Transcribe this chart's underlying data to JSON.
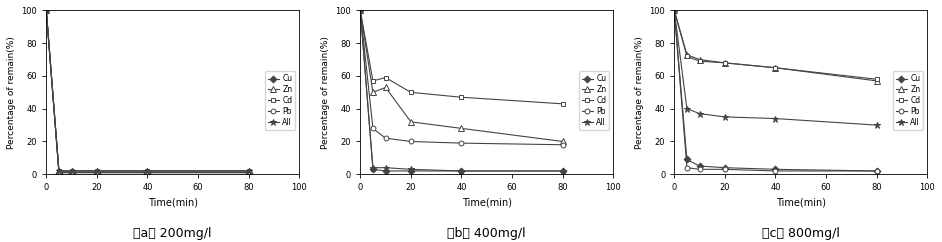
{
  "time": [
    0,
    5,
    10,
    20,
    40,
    80
  ],
  "subplots": [
    {
      "title": "（a） 200mg/l",
      "series_order": [
        "Cu",
        "Zn",
        "Cd",
        "Pb",
        "All"
      ],
      "series": {
        "Cu": [
          100,
          1,
          1,
          1,
          1,
          1
        ],
        "Zn": [
          100,
          2,
          2,
          2,
          2,
          2
        ],
        "Cd": [
          100,
          2,
          2,
          2,
          2,
          2
        ],
        "Pb": [
          100,
          1,
          1,
          1,
          1,
          1
        ],
        "All": [
          100,
          2,
          2,
          2,
          2,
          2
        ]
      }
    },
    {
      "title": "（b） 400mg/l",
      "series_order": [
        "Cu",
        "Zn",
        "Cd",
        "Pb",
        "All"
      ],
      "series": {
        "Cu": [
          100,
          3,
          2,
          2,
          2,
          2
        ],
        "Zn": [
          100,
          50,
          53,
          32,
          28,
          20
        ],
        "Cd": [
          100,
          57,
          59,
          50,
          47,
          43
        ],
        "Pb": [
          100,
          28,
          22,
          20,
          19,
          18
        ],
        "All": [
          100,
          4,
          4,
          3,
          2,
          2
        ]
      }
    },
    {
      "title": "（c） 800mg/l",
      "series_order": [
        "Cu",
        "Zn",
        "Cd",
        "Pb",
        "All"
      ],
      "series": {
        "Cu": [
          100,
          9,
          5,
          4,
          3,
          2
        ],
        "Zn": [
          100,
          73,
          70,
          68,
          65,
          57
        ],
        "Cd": [
          100,
          72,
          69,
          68,
          65,
          58
        ],
        "Pb": [
          100,
          4,
          3,
          3,
          2,
          2
        ],
        "All": [
          100,
          40,
          37,
          35,
          34,
          30
        ]
      }
    }
  ],
  "series_styles": {
    "Cu": {
      "marker": "D",
      "markersize": 3.5,
      "color": "#444444",
      "mfc": "#444444"
    },
    "Zn": {
      "marker": "^",
      "markersize": 4,
      "color": "#444444",
      "mfc": "white"
    },
    "Cd": {
      "marker": "s",
      "markersize": 3.5,
      "color": "#444444",
      "mfc": "white"
    },
    "Pb": {
      "marker": "o",
      "markersize": 3.5,
      "color": "#444444",
      "mfc": "white"
    },
    "All": {
      "marker": "*",
      "markersize": 5,
      "color": "#444444",
      "mfc": "#444444"
    }
  },
  "ylabel": "Percentage of remain(%)",
  "xlabel": "Time(min)",
  "ylim": [
    0,
    100
  ],
  "xlim": [
    0,
    100
  ],
  "xticks": [
    0,
    20,
    40,
    60,
    80,
    100
  ],
  "yticks": [
    0,
    20,
    40,
    60,
    80,
    100
  ]
}
